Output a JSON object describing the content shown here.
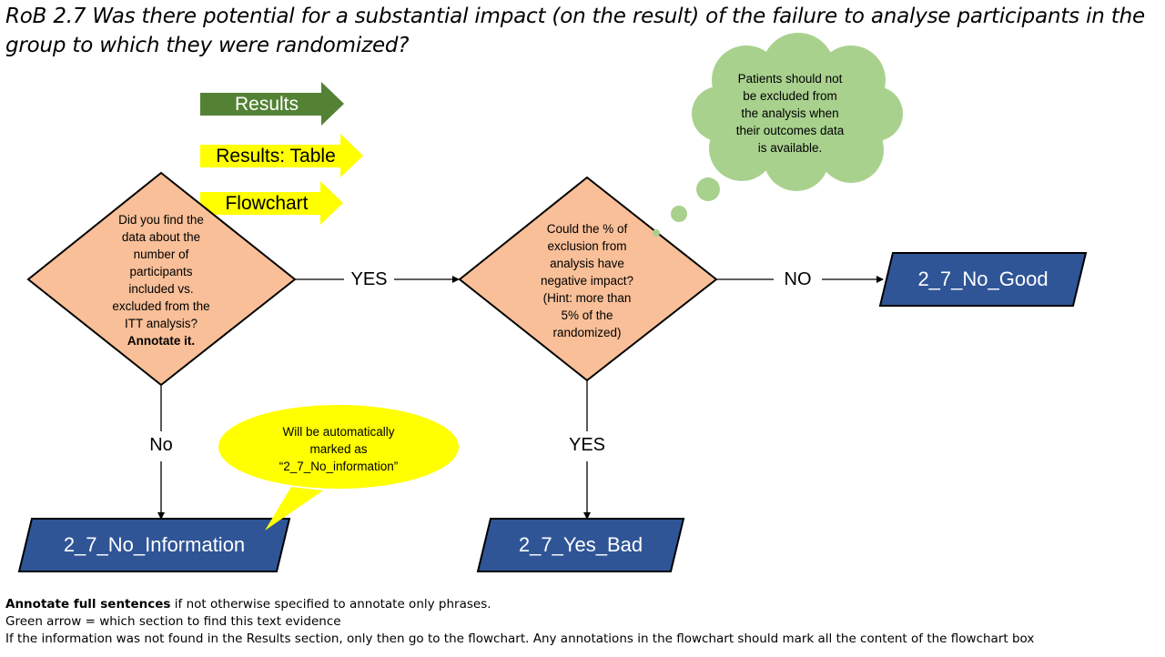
{
  "title": "RoB 2.7 Was there potential for a substantial impact (on the result) of the failure to analyse participants in the group to which they were randomized?",
  "section_arrows": {
    "results": "Results",
    "results_table": "Results: Table",
    "flowchart": "Flowchart"
  },
  "decision1": {
    "lines": [
      "Did you find the",
      "data about the",
      "number of",
      "participants",
      "included vs.",
      "excluded from the",
      "ITT analysis?"
    ],
    "emphasis": "Annotate it."
  },
  "decision2": {
    "lines": [
      "Could the % of",
      "exclusion from",
      "analysis have",
      "negative impact?",
      "(Hint: more than",
      "5% of the",
      "randomized)"
    ]
  },
  "edges": {
    "d1_yes": "YES",
    "d1_no": "No",
    "d2_no": "NO",
    "d2_yes": "YES"
  },
  "terminals": {
    "no_good": "2_7_No_Good",
    "no_information": "2_7_No_Information",
    "yes_bad": "2_7_Yes_Bad"
  },
  "callouts": {
    "thought_cloud": [
      "Patients should not",
      "be excluded from",
      "the analysis when",
      "their outcomes data",
      "is available."
    ],
    "speech_bubble": [
      "Will be automatically",
      "marked as",
      "“2_7_No_information”"
    ]
  },
  "notes": {
    "line1_bold": "Annotate full sentences",
    "line1_rest": " if not otherwise specified to annotate only phrases.",
    "line2": "Green arrow = which section to find this text evidence",
    "line3": "If the information was not found in the Results section, only then go to the flowchart. Any annotations in the flowchart should mark all the content of the flowchart box"
  },
  "colors": {
    "green_arrow": "#548235",
    "yellow": "#ffff00",
    "decision_fill": "#f8bf98",
    "terminal_fill": "#2f5597",
    "cloud_fill": "#a9d18e"
  }
}
